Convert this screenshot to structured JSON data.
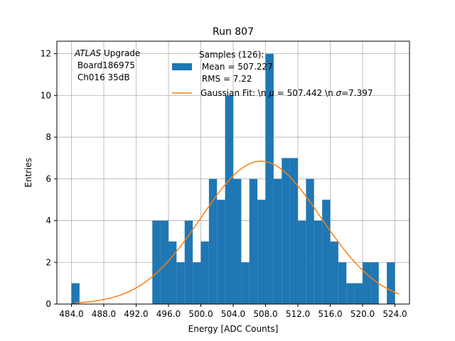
{
  "chart_data": {
    "type": "bar",
    "title": "Run 807",
    "xlabel": "Energy [ADC Counts]",
    "ylabel": "Entries",
    "xlim": [
      82.2,
      525.8
    ],
    "ylim": [
      0,
      12.6
    ],
    "xticks": [
      "484.0",
      "488.0",
      "492.0",
      "496.0",
      "500.0",
      "504.0",
      "508.0",
      "512.0",
      "516.0",
      "520.0",
      "524.0"
    ],
    "xtick_values": [
      484,
      488,
      492,
      496,
      500,
      504,
      508,
      512,
      516,
      520,
      524
    ],
    "yticks": [
      "0",
      "2",
      "4",
      "6",
      "8",
      "10",
      "12"
    ],
    "ytick_values": [
      0,
      2,
      4,
      6,
      8,
      10,
      12
    ],
    "grid": true,
    "legend_position": "top-right",
    "histogram": {
      "name": "Samples (126):\n Mean = 507.227\n RMS = 7.22",
      "color": "#1f77b4",
      "bin_width": 1,
      "bins": [
        {
          "x": 484,
          "count": 1
        },
        {
          "x": 494,
          "count": 4
        },
        {
          "x": 495,
          "count": 4
        },
        {
          "x": 496,
          "count": 3
        },
        {
          "x": 497,
          "count": 2
        },
        {
          "x": 498,
          "count": 4
        },
        {
          "x": 499,
          "count": 2
        },
        {
          "x": 500,
          "count": 3
        },
        {
          "x": 501,
          "count": 6
        },
        {
          "x": 502,
          "count": 5
        },
        {
          "x": 503,
          "count": 10
        },
        {
          "x": 504,
          "count": 6
        },
        {
          "x": 505,
          "count": 2
        },
        {
          "x": 506,
          "count": 6
        },
        {
          "x": 507,
          "count": 5
        },
        {
          "x": 508,
          "count": 12
        },
        {
          "x": 509,
          "count": 6
        },
        {
          "x": 510,
          "count": 7
        },
        {
          "x": 511,
          "count": 7
        },
        {
          "x": 512,
          "count": 4
        },
        {
          "x": 513,
          "count": 6
        },
        {
          "x": 514,
          "count": 4
        },
        {
          "x": 515,
          "count": 5
        },
        {
          "x": 516,
          "count": 3
        },
        {
          "x": 517,
          "count": 2
        },
        {
          "x": 518,
          "count": 1
        },
        {
          "x": 519,
          "count": 1
        },
        {
          "x": 520,
          "count": 2
        },
        {
          "x": 521,
          "count": 2
        },
        {
          "x": 523,
          "count": 2
        }
      ]
    },
    "fit": {
      "name_prefix": "Gaussian Fit: \\n ",
      "mu_symbol": "μ",
      "mu_text": " = 507.442 \\n ",
      "sigma_symbol": "σ",
      "sigma_text": "=7.397",
      "color": "#ff7f0e",
      "amplitude": 6.85,
      "mu": 507.442,
      "sigma": 7.397,
      "x_range": [
        484.5,
        524.5
      ]
    },
    "annotation": {
      "line1_italic": "ATLAS",
      "line1_rest": " Upgrade",
      "line2": " Board186975",
      "line3": " Ch016 35dB"
    }
  }
}
